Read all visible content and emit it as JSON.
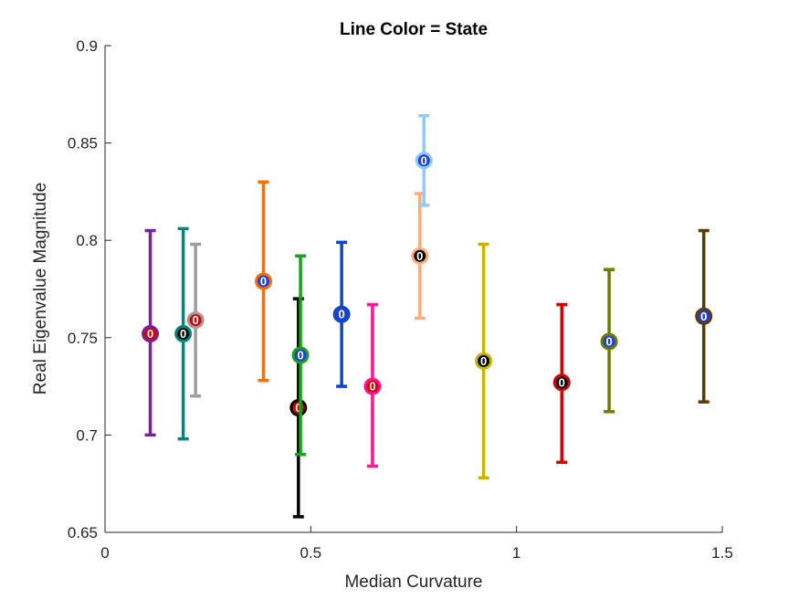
{
  "chart_data": {
    "type": "scatter",
    "title": "Line Color = State",
    "xlabel": "Median Curvature",
    "ylabel": "Real Eigenvalue Magnitude",
    "xlim": [
      0,
      1.5
    ],
    "ylim": [
      0.65,
      0.9
    ],
    "xticks": [
      "0",
      "0.5",
      "1",
      "1.5"
    ],
    "yticks": [
      "0.65",
      "0.7",
      "0.75",
      "0.8",
      "0.85",
      "0.9"
    ],
    "grid": false,
    "marker_inner_label": "0",
    "points": [
      {
        "x": 0.11,
        "y": 0.752,
        "low": 0.7,
        "high": 0.805,
        "line_color": "#7b1fa2",
        "dot_color": "#d50000"
      },
      {
        "x": 0.19,
        "y": 0.752,
        "low": 0.698,
        "high": 0.806,
        "line_color": "#00897b",
        "dot_color": "#000000"
      },
      {
        "x": 0.22,
        "y": 0.759,
        "low": 0.72,
        "high": 0.798,
        "line_color": "#9e9e9e",
        "dot_color": "#d50000"
      },
      {
        "x": 0.385,
        "y": 0.779,
        "low": 0.728,
        "high": 0.83,
        "line_color": "#ff6d00",
        "dot_color": "#1e40d8"
      },
      {
        "x": 0.47,
        "y": 0.714,
        "low": 0.658,
        "high": 0.77,
        "line_color": "#000000",
        "dot_color": "#d50000"
      },
      {
        "x": 0.475,
        "y": 0.741,
        "low": 0.69,
        "high": 0.792,
        "line_color": "#1aa31a",
        "dot_color": "#1e40d8"
      },
      {
        "x": 0.575,
        "y": 0.762,
        "low": 0.725,
        "high": 0.799,
        "line_color": "#0d47c9",
        "dot_color": "#1e40d8"
      },
      {
        "x": 0.65,
        "y": 0.725,
        "low": 0.684,
        "high": 0.767,
        "line_color": "#ff1493",
        "dot_color": "#d50000"
      },
      {
        "x": 0.765,
        "y": 0.792,
        "low": 0.76,
        "high": 0.824,
        "line_color": "#ffab7a",
        "dot_color": "#000000"
      },
      {
        "x": 0.775,
        "y": 0.841,
        "low": 0.818,
        "high": 0.864,
        "line_color": "#90caf9",
        "dot_color": "#1e40d8"
      },
      {
        "x": 0.92,
        "y": 0.738,
        "low": 0.678,
        "high": 0.798,
        "line_color": "#c9b400",
        "dot_color": "#000000"
      },
      {
        "x": 1.11,
        "y": 0.727,
        "low": 0.686,
        "high": 0.767,
        "line_color": "#d50000",
        "dot_color": "#000000"
      },
      {
        "x": 1.225,
        "y": 0.748,
        "low": 0.712,
        "high": 0.785,
        "line_color": "#6b7d00",
        "dot_color": "#1e40d8"
      },
      {
        "x": 1.455,
        "y": 0.761,
        "low": 0.717,
        "high": 0.805,
        "line_color": "#5d3a00",
        "dot_color": "#1e40d8"
      }
    ]
  }
}
